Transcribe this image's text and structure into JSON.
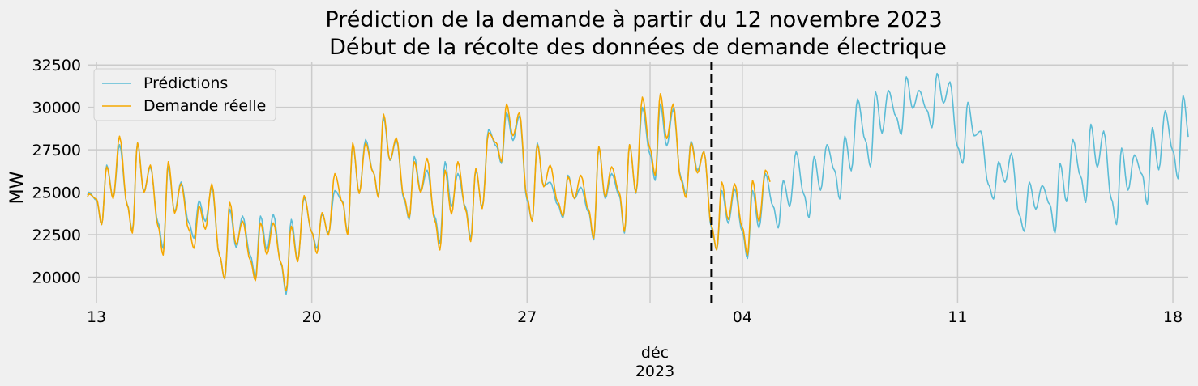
{
  "chart_data": {
    "type": "line",
    "title": "Prédiction de la demande à partir du 12 novembre 2023",
    "subtitle": "Début de la récolte des données de demande électrique",
    "ylabel": "MW",
    "xlabel": "",
    "xlim": [
      "2023-11-12T17:00",
      "2023-12-18T12:00"
    ],
    "ylim": [
      18500,
      32700
    ],
    "yticks": [
      20000,
      22500,
      25000,
      27500,
      30000,
      32500
    ],
    "xticks": [
      {
        "date": "2023-11-13",
        "label": "13"
      },
      {
        "date": "2023-11-20",
        "label": "20"
      },
      {
        "date": "2023-11-27",
        "label": "27"
      },
      {
        "date": "2023-12-04",
        "label": "04"
      },
      {
        "date": "2023-12-11",
        "label": "11"
      },
      {
        "date": "2023-12-18",
        "label": "18"
      }
    ],
    "month_marker": {
      "date": "2023-12-01",
      "label_month": "déc",
      "label_year": "2023"
    },
    "vline": {
      "date": "2023-12-03T00:00",
      "style": "dashed",
      "color": "#000000"
    },
    "grid": true,
    "legend_position": "top-left",
    "series": [
      {
        "name": "Prédictions",
        "color": "#5bbcd6",
        "days": [
          {
            "date": "2023-11-12",
            "min": 21900,
            "peak1": 25000,
            "peak2": 25000
          },
          {
            "date": "2023-11-13",
            "min": 23100,
            "peak1": 26600,
            "peak2": 27800
          },
          {
            "date": "2023-11-14",
            "min": 22700,
            "peak1": 27900,
            "peak2": 26500
          },
          {
            "date": "2023-11-15",
            "min": 21700,
            "peak1": 26500,
            "peak2": 25600
          },
          {
            "date": "2023-11-16",
            "min": 22300,
            "peak1": 24500,
            "peak2": 25300
          },
          {
            "date": "2023-11-17",
            "min": 19900,
            "peak1": 24000,
            "peak2": 23600
          },
          {
            "date": "2023-11-18",
            "min": 20000,
            "peak1": 23600,
            "peak2": 23700
          },
          {
            "date": "2023-11-19",
            "min": 19000,
            "peak1": 23400,
            "peak2": 24700
          },
          {
            "date": "2023-11-20",
            "min": 21700,
            "peak1": 23700,
            "peak2": 25100
          },
          {
            "date": "2023-11-21",
            "min": 22600,
            "peak1": 27800,
            "peak2": 28100
          },
          {
            "date": "2023-11-22",
            "min": 24800,
            "peak1": 29400,
            "peak2": 28100
          },
          {
            "date": "2023-11-23",
            "min": 23400,
            "peak1": 27100,
            "peak2": 26300
          },
          {
            "date": "2023-11-24",
            "min": 22000,
            "peak1": 26800,
            "peak2": 26100
          },
          {
            "date": "2023-11-25",
            "min": 22300,
            "peak1": 26300,
            "peak2": 28700
          },
          {
            "date": "2023-11-26",
            "min": 26700,
            "peak1": 29700,
            "peak2": 29500
          },
          {
            "date": "2023-11-27",
            "min": 23300,
            "peak1": 27900,
            "peak2": 25600
          },
          {
            "date": "2023-11-28",
            "min": 23500,
            "peak1": 26000,
            "peak2": 25300
          },
          {
            "date": "2023-11-29",
            "min": 22200,
            "peak1": 27600,
            "peak2": 26100
          },
          {
            "date": "2023-11-30",
            "min": 22600,
            "peak1": 27800,
            "peak2": 30000
          },
          {
            "date": "2023-12-01",
            "min": 25700,
            "peak1": 30200,
            "peak2": 29900
          },
          {
            "date": "2023-12-02",
            "min": 24900,
            "peak1": 28000,
            "peak2": 27400
          },
          {
            "date": "2023-12-03",
            "min": 21600,
            "peak1": 25100,
            "peak2": 25200
          },
          {
            "date": "2023-12-04",
            "min": 21100,
            "peak1": 25100,
            "peak2": 26100
          },
          {
            "date": "2023-12-05",
            "min": 22900,
            "peak1": 25700,
            "peak2": 27400
          },
          {
            "date": "2023-12-06",
            "min": 23500,
            "peak1": 27100,
            "peak2": 27800
          },
          {
            "date": "2023-12-07",
            "min": 24600,
            "peak1": 28300,
            "peak2": 30500
          },
          {
            "date": "2023-12-08",
            "min": 26500,
            "peak1": 30900,
            "peak2": 31000
          },
          {
            "date": "2023-12-09",
            "min": 28400,
            "peak1": 31800,
            "peak2": 31000
          },
          {
            "date": "2023-12-10",
            "min": 28800,
            "peak1": 32000,
            "peak2": 31500
          },
          {
            "date": "2023-12-11",
            "min": 26700,
            "peak1": 30300,
            "peak2": 28600
          },
          {
            "date": "2023-12-12",
            "min": 24600,
            "peak1": 26800,
            "peak2": 27300
          },
          {
            "date": "2023-12-13",
            "min": 22700,
            "peak1": 25600,
            "peak2": 25400
          },
          {
            "date": "2023-12-14",
            "min": 22600,
            "peak1": 26700,
            "peak2": 28100
          },
          {
            "date": "2023-12-15",
            "min": 24400,
            "peak1": 29000,
            "peak2": 28600
          },
          {
            "date": "2023-12-16",
            "min": 23100,
            "peak1": 27600,
            "peak2": 27200
          },
          {
            "date": "2023-12-17",
            "min": 24300,
            "peak1": 28800,
            "peak2": 29800
          },
          {
            "date": "2023-12-18",
            "min": 25800,
            "peak1": 30700,
            "peak2": 30300
          }
        ]
      },
      {
        "name": "Demande réelle",
        "color": "#f5a700",
        "days": [
          {
            "date": "2023-11-12",
            "min": 21800,
            "peak1": 25000,
            "peak2": 24900
          },
          {
            "date": "2023-11-13",
            "min": 23100,
            "peak1": 26500,
            "peak2": 28300
          },
          {
            "date": "2023-11-14",
            "min": 22600,
            "peak1": 27900,
            "peak2": 26600
          },
          {
            "date": "2023-11-15",
            "min": 21300,
            "peak1": 26800,
            "peak2": 25500
          },
          {
            "date": "2023-11-16",
            "min": 21700,
            "peak1": 24200,
            "peak2": 25500
          },
          {
            "date": "2023-11-17",
            "min": 19900,
            "peak1": 24400,
            "peak2": 23300
          },
          {
            "date": "2023-11-18",
            "min": 19800,
            "peak1": 23200,
            "peak2": 23200
          },
          {
            "date": "2023-11-19",
            "min": 19200,
            "peak1": 23000,
            "peak2": 24800
          },
          {
            "date": "2023-11-20",
            "min": 21400,
            "peak1": 23800,
            "peak2": 26100
          },
          {
            "date": "2023-11-21",
            "min": 22500,
            "peak1": 27900,
            "peak2": 27900
          },
          {
            "date": "2023-11-22",
            "min": 24700,
            "peak1": 29600,
            "peak2": 28200
          },
          {
            "date": "2023-11-23",
            "min": 23500,
            "peak1": 26800,
            "peak2": 27000
          },
          {
            "date": "2023-11-24",
            "min": 21600,
            "peak1": 26300,
            "peak2": 26800
          },
          {
            "date": "2023-11-25",
            "min": 22100,
            "peak1": 26400,
            "peak2": 28500
          },
          {
            "date": "2023-11-26",
            "min": 26800,
            "peak1": 30200,
            "peak2": 29700
          },
          {
            "date": "2023-11-27",
            "min": 23300,
            "peak1": 27800,
            "peak2": 26600
          },
          {
            "date": "2023-11-28",
            "min": 23600,
            "peak1": 25900,
            "peak2": 26000
          },
          {
            "date": "2023-11-29",
            "min": 22300,
            "peak1": 27700,
            "peak2": 26500
          },
          {
            "date": "2023-11-30",
            "min": 22700,
            "peak1": 27800,
            "peak2": 30600
          },
          {
            "date": "2023-12-01",
            "min": 26000,
            "peak1": 30800,
            "peak2": 30200
          },
          {
            "date": "2023-12-02",
            "min": 24700,
            "peak1": 27900,
            "peak2": 27400
          },
          {
            "date": "2023-12-03",
            "min": 21600,
            "peak1": 25600,
            "peak2": 25500
          },
          {
            "date": "2023-12-04",
            "min": 21300,
            "peak1": 25700,
            "peak2": 26300
          }
        ]
      }
    ]
  }
}
